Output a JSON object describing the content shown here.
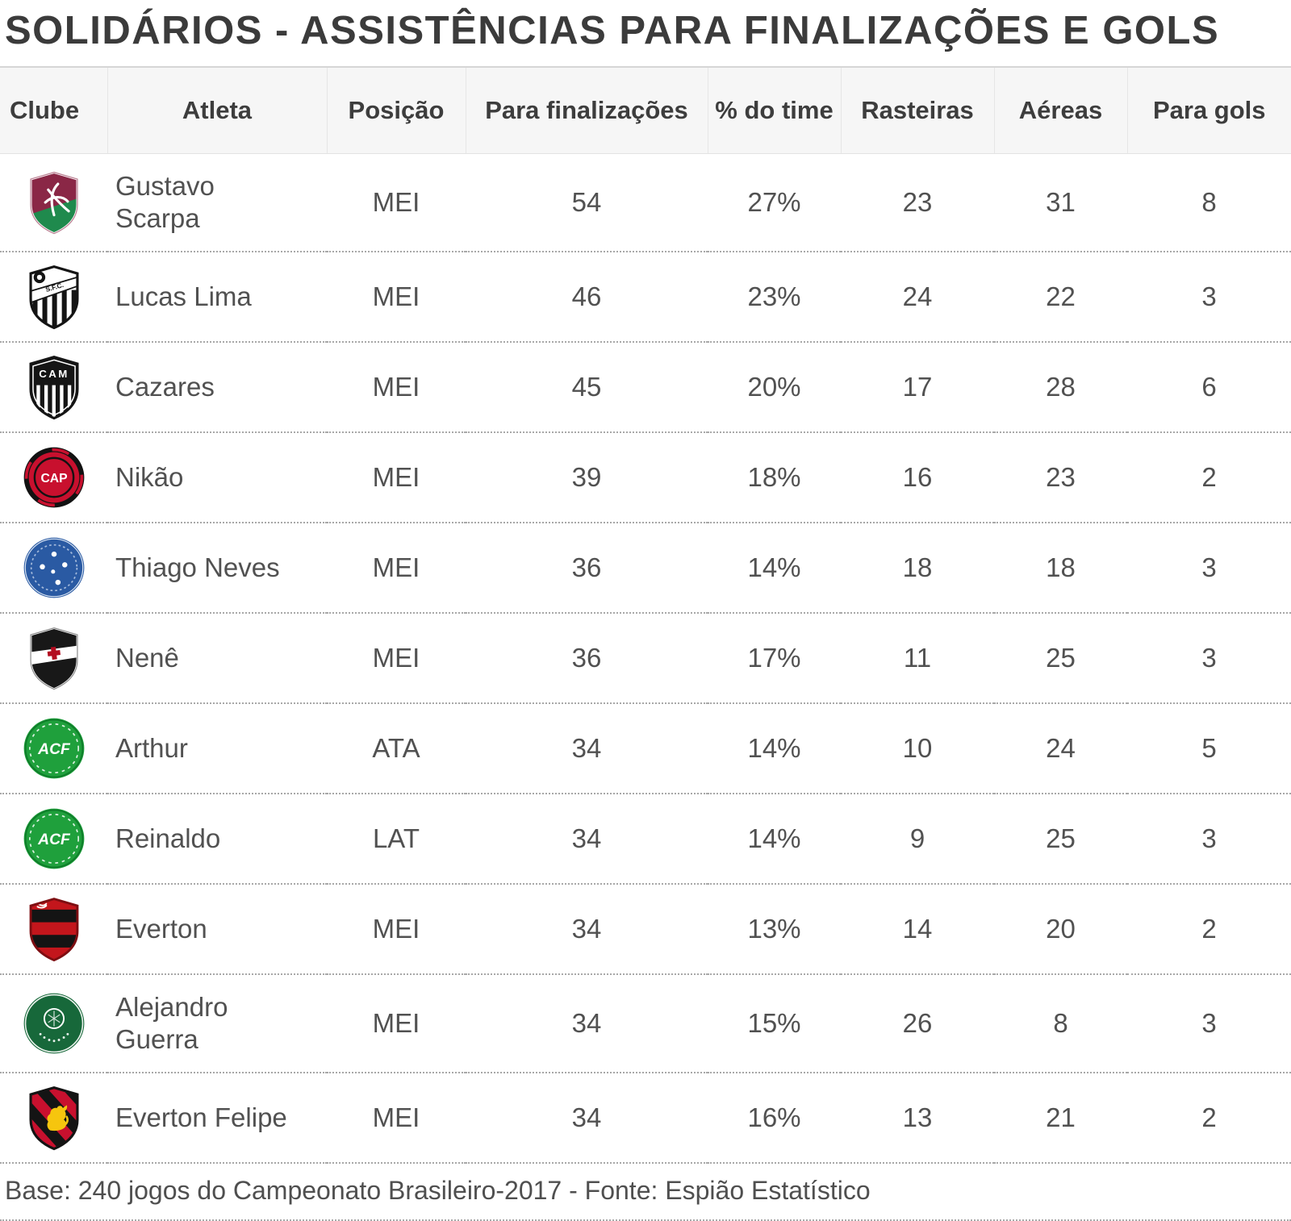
{
  "title": "SOLIDÁRIOS - ASSISTÊNCIAS PARA FINALIZAÇÕES E GOLS",
  "table": {
    "columns": [
      {
        "label": "Clube"
      },
      {
        "label": "Atleta"
      },
      {
        "label": "Posição"
      },
      {
        "label": "Para finalizações"
      },
      {
        "label": "% do time"
      },
      {
        "label": "Rasteiras"
      },
      {
        "label": "Aéreas"
      },
      {
        "label": "Para gols"
      }
    ],
    "rows": [
      {
        "club": "Fluminense",
        "club_id": "fluminense",
        "atleta": "Gustavo Scarpa",
        "posicao": "MEI",
        "para_finalizacoes": 54,
        "pct_do_time": "27%",
        "rasteiras": 23,
        "aereas": 31,
        "para_gols": 8
      },
      {
        "club": "Santos",
        "club_id": "santos",
        "atleta": "Lucas Lima",
        "posicao": "MEI",
        "para_finalizacoes": 46,
        "pct_do_time": "23%",
        "rasteiras": 24,
        "aereas": 22,
        "para_gols": 3
      },
      {
        "club": "Atlético-MG",
        "club_id": "atletico-mg",
        "atleta": "Cazares",
        "posicao": "MEI",
        "para_finalizacoes": 45,
        "pct_do_time": "20%",
        "rasteiras": 17,
        "aereas": 28,
        "para_gols": 6
      },
      {
        "club": "Atlético-PR",
        "club_id": "atletico-pr",
        "atleta": "Nikão",
        "posicao": "MEI",
        "para_finalizacoes": 39,
        "pct_do_time": "18%",
        "rasteiras": 16,
        "aereas": 23,
        "para_gols": 2
      },
      {
        "club": "Cruzeiro",
        "club_id": "cruzeiro",
        "atleta": "Thiago Neves",
        "posicao": "MEI",
        "para_finalizacoes": 36,
        "pct_do_time": "14%",
        "rasteiras": 18,
        "aereas": 18,
        "para_gols": 3
      },
      {
        "club": "Vasco",
        "club_id": "vasco",
        "atleta": "Nenê",
        "posicao": "MEI",
        "para_finalizacoes": 36,
        "pct_do_time": "17%",
        "rasteiras": 11,
        "aereas": 25,
        "para_gols": 3
      },
      {
        "club": "Chapecoense",
        "club_id": "chapecoense",
        "atleta": "Arthur",
        "posicao": "ATA",
        "para_finalizacoes": 34,
        "pct_do_time": "14%",
        "rasteiras": 10,
        "aereas": 24,
        "para_gols": 5
      },
      {
        "club": "Chapecoense",
        "club_id": "chapecoense",
        "atleta": "Reinaldo",
        "posicao": "LAT",
        "para_finalizacoes": 34,
        "pct_do_time": "14%",
        "rasteiras": 9,
        "aereas": 25,
        "para_gols": 3
      },
      {
        "club": "Flamengo",
        "club_id": "flamengo",
        "atleta": "Everton",
        "posicao": "MEI",
        "para_finalizacoes": 34,
        "pct_do_time": "13%",
        "rasteiras": 14,
        "aereas": 20,
        "para_gols": 2
      },
      {
        "club": "Palmeiras",
        "club_id": "palmeiras",
        "atleta": "Alejandro Guerra",
        "posicao": "MEI",
        "para_finalizacoes": 34,
        "pct_do_time": "15%",
        "rasteiras": 26,
        "aereas": 8,
        "para_gols": 3
      },
      {
        "club": "Sport",
        "club_id": "sport",
        "atleta": "Everton Felipe",
        "posicao": "MEI",
        "para_finalizacoes": 34,
        "pct_do_time": "16%",
        "rasteiras": 13,
        "aereas": 21,
        "para_gols": 2
      }
    ]
  },
  "footer": "Base: 240 jogos do Campeonato Brasileiro-2017 - Fonte: Espião Estatístico",
  "chart_data": {
    "type": "table",
    "title": "SOLIDÁRIOS - ASSISTÊNCIAS PARA FINALIZAÇÕES E GOLS",
    "columns": [
      "Clube",
      "Atleta",
      "Posição",
      "Para finalizações",
      "% do time",
      "Rasteiras",
      "Aéreas",
      "Para gols"
    ],
    "rows": [
      [
        "Fluminense",
        "Gustavo Scarpa",
        "MEI",
        54,
        "27%",
        23,
        31,
        8
      ],
      [
        "Santos",
        "Lucas Lima",
        "MEI",
        46,
        "23%",
        24,
        22,
        3
      ],
      [
        "Atlético-MG",
        "Cazares",
        "MEI",
        45,
        "20%",
        17,
        28,
        6
      ],
      [
        "Atlético-PR",
        "Nikão",
        "MEI",
        39,
        "18%",
        16,
        23,
        2
      ],
      [
        "Cruzeiro",
        "Thiago Neves",
        "MEI",
        36,
        "14%",
        18,
        18,
        3
      ],
      [
        "Vasco",
        "Nenê",
        "MEI",
        36,
        "17%",
        11,
        25,
        3
      ],
      [
        "Chapecoense",
        "Arthur",
        "ATA",
        34,
        "14%",
        10,
        24,
        5
      ],
      [
        "Chapecoense",
        "Reinaldo",
        "LAT",
        34,
        "14%",
        9,
        25,
        3
      ],
      [
        "Flamengo",
        "Everton",
        "MEI",
        34,
        "13%",
        14,
        20,
        2
      ],
      [
        "Palmeiras",
        "Alejandro Guerra",
        "MEI",
        34,
        "15%",
        26,
        8,
        3
      ],
      [
        "Sport",
        "Everton Felipe",
        "MEI",
        34,
        "16%",
        13,
        21,
        2
      ]
    ],
    "source_note": "Base: 240 jogos do Campeonato Brasileiro-2017 - Fonte: Espião Estatístico"
  },
  "colors": {
    "title_text": "#3b3b3b",
    "header_bg": "#f6f6f6",
    "header_text": "#3d3d3d",
    "body_text": "#515151",
    "divider_dotted": "#a8a8a8"
  }
}
